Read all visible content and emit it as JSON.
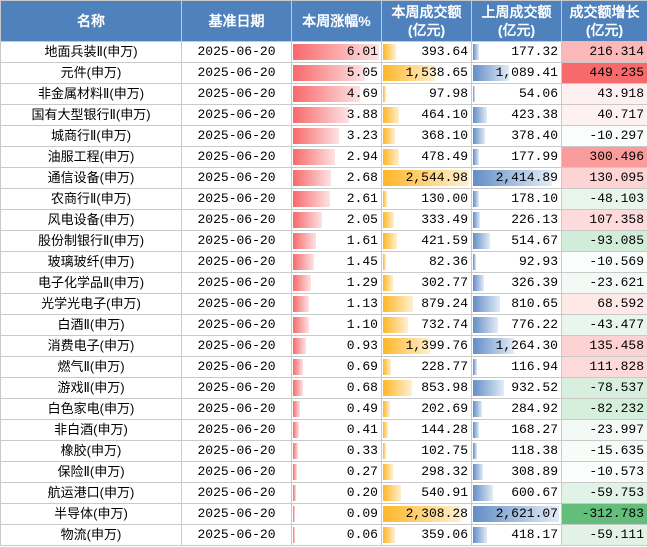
{
  "table": {
    "headers": {
      "name": "名称",
      "date": "基准日期",
      "change": "本周涨幅%",
      "this_vol": "本周成交额\n(亿元)",
      "last_vol": "上周成交额\n(亿元)",
      "growth": "成交额增长\n(亿元)"
    },
    "rows": [
      {
        "name": "地面兵装Ⅱ(申万)",
        "date": "2025-06-20",
        "change": "6.01",
        "this_vol": "393.64",
        "last_vol": "177.32",
        "growth": "216.314"
      },
      {
        "name": "元件(申万)",
        "date": "2025-06-20",
        "change": "5.05",
        "this_vol": "1,538.65",
        "last_vol": "1,089.41",
        "growth": "449.235"
      },
      {
        "name": "非金属材料Ⅱ(申万)",
        "date": "2025-06-20",
        "change": "4.69",
        "this_vol": "97.98",
        "last_vol": "54.06",
        "growth": "43.918"
      },
      {
        "name": "国有大型银行Ⅱ(申万)",
        "date": "2025-06-20",
        "change": "3.88",
        "this_vol": "464.10",
        "last_vol": "423.38",
        "growth": "40.717"
      },
      {
        "name": "城商行Ⅱ(申万)",
        "date": "2025-06-20",
        "change": "3.23",
        "this_vol": "368.10",
        "last_vol": "378.40",
        "growth": "-10.297"
      },
      {
        "name": "油服工程(申万)",
        "date": "2025-06-20",
        "change": "2.94",
        "this_vol": "478.49",
        "last_vol": "177.99",
        "growth": "300.496"
      },
      {
        "name": "通信设备(申万)",
        "date": "2025-06-20",
        "change": "2.68",
        "this_vol": "2,544.98",
        "last_vol": "2,414.89",
        "growth": "130.095"
      },
      {
        "name": "农商行Ⅱ(申万)",
        "date": "2025-06-20",
        "change": "2.61",
        "this_vol": "130.00",
        "last_vol": "178.10",
        "growth": "-48.103"
      },
      {
        "name": "风电设备(申万)",
        "date": "2025-06-20",
        "change": "2.05",
        "this_vol": "333.49",
        "last_vol": "226.13",
        "growth": "107.358"
      },
      {
        "name": "股份制银行Ⅱ(申万)",
        "date": "2025-06-20",
        "change": "1.61",
        "this_vol": "421.59",
        "last_vol": "514.67",
        "growth": "-93.085"
      },
      {
        "name": "玻璃玻纤(申万)",
        "date": "2025-06-20",
        "change": "1.45",
        "this_vol": "82.36",
        "last_vol": "92.93",
        "growth": "-10.569"
      },
      {
        "name": "电子化学品Ⅱ(申万)",
        "date": "2025-06-20",
        "change": "1.29",
        "this_vol": "302.77",
        "last_vol": "326.39",
        "growth": "-23.621"
      },
      {
        "name": "光学光电子(申万)",
        "date": "2025-06-20",
        "change": "1.13",
        "this_vol": "879.24",
        "last_vol": "810.65",
        "growth": "68.592"
      },
      {
        "name": "白酒Ⅱ(申万)",
        "date": "2025-06-20",
        "change": "1.10",
        "this_vol": "732.74",
        "last_vol": "776.22",
        "growth": "-43.477"
      },
      {
        "name": "消费电子(申万)",
        "date": "2025-06-20",
        "change": "0.93",
        "this_vol": "1,399.76",
        "last_vol": "1,264.30",
        "growth": "135.458"
      },
      {
        "name": "燃气Ⅱ(申万)",
        "date": "2025-06-20",
        "change": "0.69",
        "this_vol": "228.77",
        "last_vol": "116.94",
        "growth": "111.828"
      },
      {
        "name": "游戏Ⅱ(申万)",
        "date": "2025-06-20",
        "change": "0.68",
        "this_vol": "853.98",
        "last_vol": "932.52",
        "growth": "-78.537"
      },
      {
        "name": "白色家电(申万)",
        "date": "2025-06-20",
        "change": "0.49",
        "this_vol": "202.69",
        "last_vol": "284.92",
        "growth": "-82.232"
      },
      {
        "name": "非白酒(申万)",
        "date": "2025-06-20",
        "change": "0.41",
        "this_vol": "144.28",
        "last_vol": "168.27",
        "growth": "-23.997"
      },
      {
        "name": "橡胶(申万)",
        "date": "2025-06-20",
        "change": "0.33",
        "this_vol": "102.75",
        "last_vol": "118.38",
        "growth": "-15.635"
      },
      {
        "name": "保险Ⅱ(申万)",
        "date": "2025-06-20",
        "change": "0.27",
        "this_vol": "298.32",
        "last_vol": "308.89",
        "growth": "-10.573"
      },
      {
        "name": "航运港口(申万)",
        "date": "2025-06-20",
        "change": "0.20",
        "this_vol": "540.91",
        "last_vol": "600.67",
        "growth": "-59.753"
      },
      {
        "name": "半导体(申万)",
        "date": "2025-06-20",
        "change": "0.09",
        "this_vol": "2,308.28",
        "last_vol": "2,621.07",
        "growth": "-312.783"
      },
      {
        "name": "物流(申万)",
        "date": "2025-06-20",
        "change": "0.06",
        "this_vol": "359.06",
        "last_vol": "418.17",
        "growth": "-59.111"
      }
    ]
  },
  "colors": {
    "header_bg": "#4f81bd",
    "change_bar": "#f8696b",
    "this_vol_bar": "#ffb628",
    "last_vol_bar": "#638ec6",
    "growth_positive": "#f8696b",
    "growth_negative": "#63be7b"
  }
}
